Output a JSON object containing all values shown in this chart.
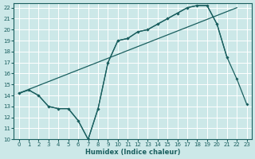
{
  "xlabel": "Humidex (Indice chaleur)",
  "bg_color": "#cce8e8",
  "line_color": "#1a5f5f",
  "grid_color": "#ffffff",
  "xlim": [
    -0.5,
    23.5
  ],
  "ylim": [
    10,
    22.4
  ],
  "yticks": [
    10,
    11,
    12,
    13,
    14,
    15,
    16,
    17,
    18,
    19,
    20,
    21,
    22
  ],
  "xticks": [
    0,
    1,
    2,
    3,
    4,
    5,
    6,
    7,
    8,
    9,
    10,
    11,
    12,
    13,
    14,
    15,
    16,
    17,
    18,
    19,
    20,
    21,
    22,
    23
  ],
  "line1_x": [
    0,
    22
  ],
  "line1_y": [
    14.2,
    22.0
  ],
  "line2_x": [
    0,
    1,
    2,
    3,
    4,
    5,
    6,
    7,
    8,
    9,
    10,
    11,
    12,
    13,
    14,
    15,
    16,
    17,
    18,
    19,
    20,
    21
  ],
  "line2_y": [
    14.2,
    14.5,
    14.0,
    13.0,
    12.8,
    12.8,
    11.7,
    10.0,
    12.8,
    17.0,
    19.0,
    19.2,
    19.8,
    20.0,
    20.5,
    21.0,
    21.5,
    22.0,
    22.2,
    22.2,
    20.5,
    17.5
  ],
  "line3_x": [
    0,
    1,
    2,
    3,
    4,
    5,
    6,
    7,
    8,
    9,
    10,
    11,
    12,
    13,
    14,
    15,
    16,
    17,
    18,
    19,
    20,
    21,
    22,
    23
  ],
  "line3_y": [
    14.2,
    14.5,
    14.0,
    13.0,
    12.8,
    12.8,
    11.7,
    10.0,
    12.8,
    17.0,
    19.0,
    19.2,
    19.8,
    20.0,
    20.5,
    21.0,
    21.5,
    22.0,
    22.2,
    22.2,
    20.5,
    17.5,
    15.5,
    13.2
  ]
}
